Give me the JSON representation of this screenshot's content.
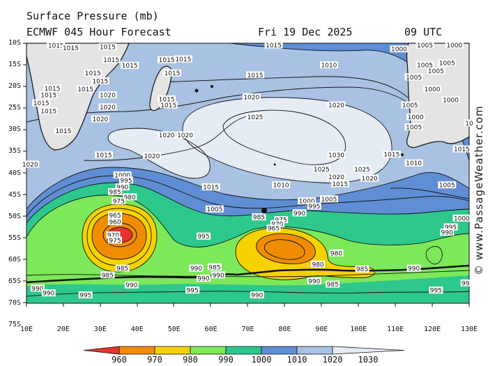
{
  "header": {
    "title": "Surface Pressure (mb)",
    "model": "ECMWF 045 Hour Forecast",
    "date": "Fri 19 Dec 2025",
    "time": "09 UTC"
  },
  "watermark": "© www.PassageWeather.com",
  "axes": {
    "lat_labels": [
      "10S",
      "15S",
      "20S",
      "25S",
      "30S",
      "35S",
      "40S",
      "45S",
      "50S",
      "55S",
      "60S",
      "65S",
      "70S",
      "75S"
    ],
    "lon_labels": [
      "10E",
      "20E",
      "30E",
      "40E",
      "50E",
      "60E",
      "70E",
      "80E",
      "90E",
      "100E",
      "110E",
      "120E",
      "130E"
    ]
  },
  "legend": {
    "unit": "mb",
    "ticks": [
      "960",
      "970",
      "980",
      "990",
      "1000",
      "1010",
      "1020",
      "1030"
    ],
    "colors": [
      "#e63232",
      "#f08c00",
      "#f5d200",
      "#7de85a",
      "#2ec88c",
      "#5f8ed4",
      "#a9c2e3",
      "#e6ecf4"
    ]
  },
  "contour_labels": [
    {
      "text": "1015",
      "lon": 18,
      "lat": -10.6
    },
    {
      "text": "1015",
      "lon": 22,
      "lat": -11.2
    },
    {
      "text": "1015",
      "lon": 32,
      "lat": -11
    },
    {
      "text": "1015",
      "lon": 33,
      "lat": -14.2
    },
    {
      "text": "1015",
      "lon": 38,
      "lat": -15.6
    },
    {
      "text": "1015",
      "lon": 48,
      "lat": -14.2
    },
    {
      "text": "1015",
      "lon": 49.5,
      "lat": -17.5
    },
    {
      "text": "1015",
      "lon": 28,
      "lat": -17.5
    },
    {
      "text": "1015",
      "lon": 26,
      "lat": -21.5
    },
    {
      "text": "1015",
      "lon": 30,
      "lat": -19.5
    },
    {
      "text": "1015",
      "lon": 17,
      "lat": -21.3
    },
    {
      "text": "1015",
      "lon": 16,
      "lat": -23
    },
    {
      "text": "1015",
      "lon": 14,
      "lat": -25
    },
    {
      "text": "1015",
      "lon": 16,
      "lat": -27
    },
    {
      "text": "1015",
      "lon": 20,
      "lat": -32
    },
    {
      "text": "1015",
      "lon": 48,
      "lat": -24
    },
    {
      "text": "1015",
      "lon": 48.5,
      "lat": -25.5
    },
    {
      "text": "1015",
      "lon": 52.5,
      "lat": -14
    },
    {
      "text": "1020",
      "lon": 32,
      "lat": -23
    },
    {
      "text": "1020",
      "lon": 32,
      "lat": -26
    },
    {
      "text": "1020",
      "lon": 30,
      "lat": -29
    },
    {
      "text": "1015",
      "lon": 77,
      "lat": -10.5
    },
    {
      "text": "1000",
      "lon": 111,
      "lat": -11.5
    },
    {
      "text": "1010",
      "lon": 92,
      "lat": -15.5
    },
    {
      "text": "1015",
      "lon": 72,
      "lat": -18
    },
    {
      "text": "1020",
      "lon": 71,
      "lat": -23.5
    },
    {
      "text": "1020",
      "lon": 94,
      "lat": -25.5
    },
    {
      "text": "1025",
      "lon": 72,
      "lat": -28.5
    },
    {
      "text": "1020",
      "lon": 48,
      "lat": -33
    },
    {
      "text": "1020",
      "lon": 53,
      "lat": -33
    },
    {
      "text": "1030",
      "lon": 94,
      "lat": -38
    },
    {
      "text": "1025",
      "lon": 90,
      "lat": -41.5
    },
    {
      "text": "1025",
      "lon": 101,
      "lat": -41.5
    },
    {
      "text": "1020",
      "lon": 94,
      "lat": -43.5
    },
    {
      "text": "1020",
      "lon": 103,
      "lat": -43.8
    },
    {
      "text": "1015",
      "lon": 31,
      "lat": -38
    },
    {
      "text": "1020",
      "lon": 44,
      "lat": -38.2
    },
    {
      "text": "1020",
      "lon": 11,
      "lat": -40.3
    },
    {
      "text": "1015",
      "lon": 60,
      "lat": -46
    },
    {
      "text": "1010",
      "lon": 79,
      "lat": -45.5
    },
    {
      "text": "1015",
      "lon": 95,
      "lat": -45.2
    },
    {
      "text": "1000",
      "lon": 36,
      "lat": -43
    },
    {
      "text": "995",
      "lon": 37,
      "lat": -44.3
    },
    {
      "text": "990",
      "lon": 36,
      "lat": -46
    },
    {
      "text": "985",
      "lon": 34,
      "lat": -47.2
    },
    {
      "text": "980",
      "lon": 38,
      "lat": -48.5
    },
    {
      "text": "975",
      "lon": 35,
      "lat": -49.5
    },
    {
      "text": "965",
      "lon": 34,
      "lat": -53
    },
    {
      "text": "960",
      "lon": 34,
      "lat": -54.7
    },
    {
      "text": "970",
      "lon": 33.5,
      "lat": -58
    },
    {
      "text": "975",
      "lon": 34,
      "lat": -59.3
    },
    {
      "text": "1005",
      "lon": 61,
      "lat": -51.5
    },
    {
      "text": "995",
      "lon": 58,
      "lat": -58.3
    },
    {
      "text": "1000",
      "lon": 86,
      "lat": -49.5
    },
    {
      "text": "1005",
      "lon": 92,
      "lat": -49
    },
    {
      "text": "995",
      "lon": 88,
      "lat": -50.8
    },
    {
      "text": "990",
      "lon": 84,
      "lat": -52.5
    },
    {
      "text": "985",
      "lon": 73,
      "lat": -53.5
    },
    {
      "text": "975",
      "lon": 79,
      "lat": -54.2
    },
    {
      "text": "970",
      "lon": 78,
      "lat": -55.2
    },
    {
      "text": "965",
      "lon": 77,
      "lat": -56.3
    },
    {
      "text": "980",
      "lon": 94,
      "lat": -62.5
    },
    {
      "text": "980",
      "lon": 89,
      "lat": -65.3
    },
    {
      "text": "985",
      "lon": 36,
      "lat": -66.3
    },
    {
      "text": "990",
      "lon": 56,
      "lat": -66.3
    },
    {
      "text": "985",
      "lon": 61,
      "lat": -66
    },
    {
      "text": "985",
      "lon": 32,
      "lat": -68
    },
    {
      "text": "990",
      "lon": 58,
      "lat": -68.8
    },
    {
      "text": "990",
      "lon": 62,
      "lat": -68
    },
    {
      "text": "990",
      "lon": 38.5,
      "lat": -70.5
    },
    {
      "text": "995",
      "lon": 55,
      "lat": -71.8
    },
    {
      "text": "990",
      "lon": 13,
      "lat": -71.3
    },
    {
      "text": "990",
      "lon": 16,
      "lat": -72.5
    },
    {
      "text": "995",
      "lon": 26,
      "lat": -73
    },
    {
      "text": "990",
      "lon": 72.5,
      "lat": -73
    },
    {
      "text": "990",
      "lon": 88,
      "lat": -69.5
    },
    {
      "text": "985",
      "lon": 93,
      "lat": -70.3
    },
    {
      "text": "985",
      "lon": 101,
      "lat": -66.5
    },
    {
      "text": "990",
      "lon": 115,
      "lat": -66.3
    },
    {
      "text": "995",
      "lon": 121,
      "lat": -71.8
    },
    {
      "text": "99",
      "lon": 129,
      "lat": -70
    },
    {
      "text": "1005",
      "lon": 124,
      "lat": -45.5
    },
    {
      "text": "1010",
      "lon": 115,
      "lat": -40
    },
    {
      "text": "1015",
      "lon": 109,
      "lat": -37.8
    },
    {
      "text": "1015",
      "lon": 128,
      "lat": -36.5
    },
    {
      "text": "1005",
      "lon": 115,
      "lat": -31
    },
    {
      "text": "1005",
      "lon": 114,
      "lat": -25.5
    },
    {
      "text": "1000",
      "lon": 115.5,
      "lat": -28.5
    },
    {
      "text": "1000",
      "lon": 120,
      "lat": -21.5
    },
    {
      "text": "1005",
      "lon": 115,
      "lat": -18.5
    },
    {
      "text": "1005",
      "lon": 118,
      "lat": -15.5
    },
    {
      "text": "1005",
      "lon": 121,
      "lat": -17
    },
    {
      "text": "1000",
      "lon": 125,
      "lat": -24.2
    },
    {
      "text": "1005",
      "lon": 118,
      "lat": -10.5
    },
    {
      "text": "1005",
      "lon": 124,
      "lat": -15
    },
    {
      "text": "1000",
      "lon": 126,
      "lat": -10.5
    },
    {
      "text": "1000",
      "lon": 128,
      "lat": -53.8
    },
    {
      "text": "995",
      "lon": 125,
      "lat": -56
    },
    {
      "text": "990",
      "lon": 124,
      "lat": -57.3
    },
    {
      "text": "10",
      "lon": 130,
      "lat": -30
    }
  ]
}
